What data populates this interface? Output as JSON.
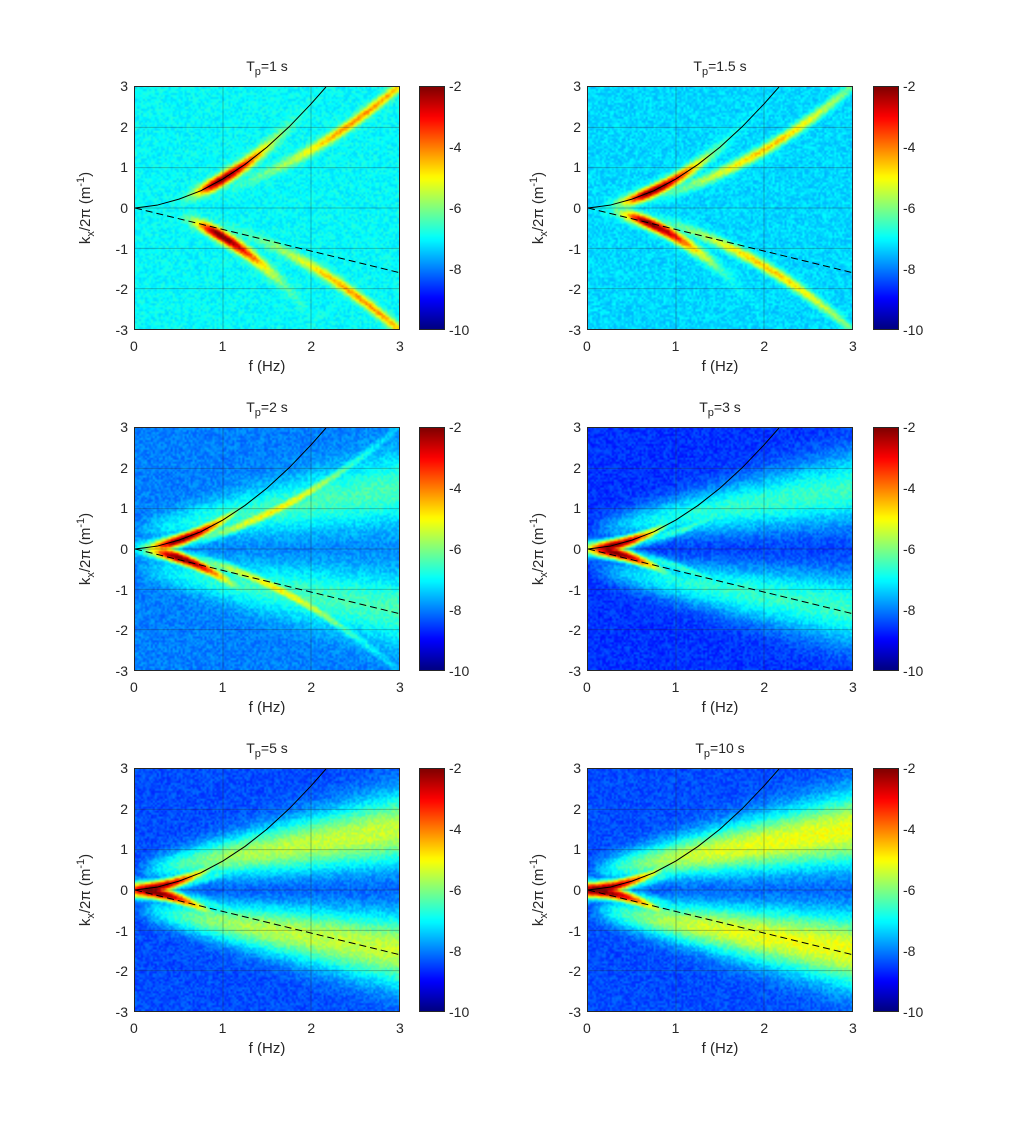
{
  "chart_data": [
    {
      "type": "heatmap",
      "title": {
        "main": "T",
        "sub": "p",
        "rest": "=1 s"
      },
      "fp_label": "T_p=1 s"
    },
    {
      "type": "heatmap",
      "title": {
        "main": "T",
        "sub": "p",
        "rest": "=1.5 s"
      },
      "fp_label": "T_p=1.5 s"
    },
    {
      "type": "heatmap",
      "title": {
        "main": "T",
        "sub": "p",
        "rest": "=2 s"
      },
      "fp_label": "T_p=2 s"
    },
    {
      "type": "heatmap",
      "title": {
        "main": "T",
        "sub": "p",
        "rest": "=3 s"
      },
      "fp_label": "T_p=3 s"
    },
    {
      "type": "heatmap",
      "title": {
        "main": "T",
        "sub": "p",
        "rest": "=5 s"
      },
      "fp_label": "T_p=5 s"
    },
    {
      "type": "heatmap",
      "title": {
        "main": "T",
        "sub": "p",
        "rest": "=10 s"
      },
      "fp_label": "T_p=10 s"
    }
  ],
  "shared": {
    "xlabel": "f (Hz)",
    "ylabel": {
      "a": "k",
      "sub": "x",
      "b": "/2π (m",
      "sup": "-1",
      "c": ")"
    },
    "xlim": [
      0,
      3
    ],
    "ylim": [
      -3,
      3
    ],
    "xticks": [
      "0",
      "1",
      "2",
      "3"
    ],
    "yticks": [
      "3",
      "2",
      "1",
      "0",
      "-1",
      "-2",
      "-3"
    ],
    "colorbar": {
      "range": [
        -10,
        -2
      ],
      "ticks": [
        "-2",
        "-4",
        "-6",
        "-8",
        "-10"
      ],
      "colormap": "jet"
    },
    "grid": true,
    "solid_curve": {
      "f": [
        0,
        0.25,
        0.5,
        0.75,
        1,
        1.25,
        1.5,
        1.75,
        2,
        2.17
      ],
      "k": [
        0,
        0.07,
        0.22,
        0.43,
        0.72,
        1.08,
        1.51,
        2.01,
        2.58,
        3.0
      ],
      "color": "#000000",
      "style": "solid"
    },
    "dashed_line": {
      "f": [
        0,
        3
      ],
      "k": [
        0,
        -1.6
      ],
      "color": "#000000",
      "style": "dashed"
    }
  }
}
